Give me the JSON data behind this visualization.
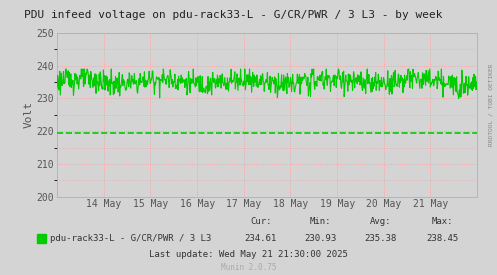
{
  "title": "PDU infeed voltage on pdu-rack33-L - G/CR/PWR / 3 L3 - by week",
  "ylabel": "Volt",
  "bg_color": "#d4d4d4",
  "plot_bg_color": "#d4d4d4",
  "grid_color": "#ff9999",
  "grid_style": "dotted",
  "line_color": "#00cc00",
  "dashed_line_color": "#00cc00",
  "border_color": "#aaaaaa",
  "title_color": "#333333",
  "text_color": "#555555",
  "ylim": [
    200,
    250
  ],
  "yticks": [
    200,
    210,
    220,
    230,
    240,
    250
  ],
  "y_line_value": 219.5,
  "xtick_labels": [
    "14 May",
    "15 May",
    "16 May",
    "17 May",
    "18 May",
    "19 May",
    "20 May",
    "21 May"
  ],
  "xtick_positions": [
    1,
    2,
    3,
    4,
    5,
    6,
    7,
    8
  ],
  "legend_label": "pdu-rack33-L - G/CR/PWR / 3 L3",
  "cur_label": "Cur:",
  "min_label": "Min:",
  "avg_label": "Avg:",
  "max_label": "Max:",
  "cur_val": "234.61",
  "min_val": "230.93",
  "avg_val": "235.38",
  "max_val": "238.45",
  "last_update": "Last update: Wed May 21 21:30:00 2025",
  "munin_version": "Munin 2.0.75",
  "right_label": "RRDTOOL / TOBI OETIKER",
  "mean_voltage": 235.2,
  "noise_amplitude": 1.8
}
